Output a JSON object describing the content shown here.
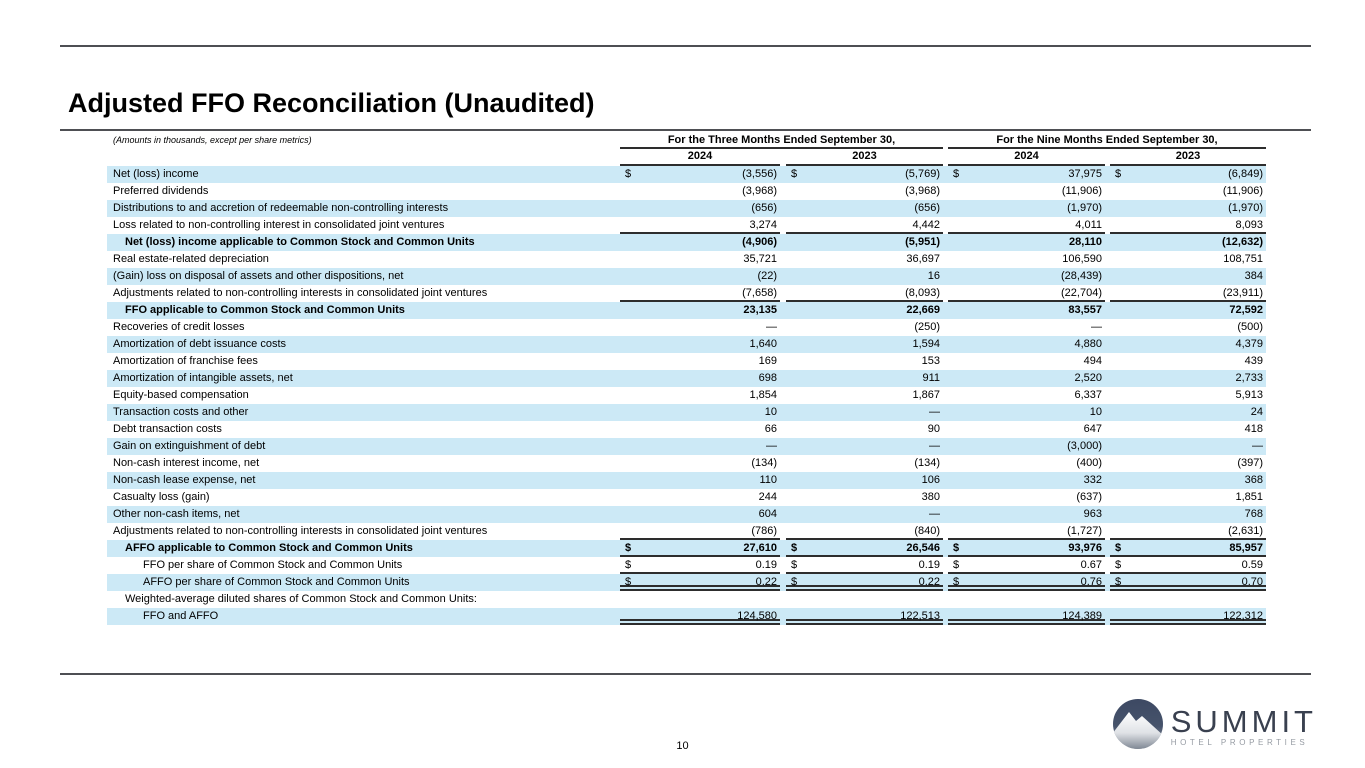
{
  "page": {
    "title": "Adjusted FFO Reconciliation (Unaudited)",
    "page_number": "10"
  },
  "table": {
    "note": "(Amounts in thousands, except per share metrics)",
    "group_headers": [
      "For the Three Months Ended September 30,",
      "For the Nine Months Ended September 30,"
    ],
    "year_headers": [
      "2024",
      "2023",
      "2024",
      "2023"
    ],
    "rows": [
      {
        "label": "Net (loss) income",
        "indent": 0,
        "bold": false,
        "dollar": true,
        "highlight": true,
        "rule": "none",
        "values": [
          "(3,556)",
          "(5,769)",
          "37,975",
          "(6,849)"
        ]
      },
      {
        "label": "Preferred dividends",
        "indent": 0,
        "bold": false,
        "dollar": false,
        "highlight": false,
        "rule": "none",
        "values": [
          "(3,968)",
          "(3,968)",
          "(11,906)",
          "(11,906)"
        ]
      },
      {
        "label": "Distributions to and accretion of redeemable non-controlling interests",
        "indent": 0,
        "bold": false,
        "dollar": false,
        "highlight": true,
        "rule": "none",
        "values": [
          "(656)",
          "(656)",
          "(1,970)",
          "(1,970)"
        ]
      },
      {
        "label": "Loss related to non-controlling interest in consolidated joint ventures",
        "indent": 0,
        "bold": false,
        "dollar": false,
        "highlight": false,
        "rule": "single",
        "values": [
          "3,274",
          "4,442",
          "4,011",
          "8,093"
        ]
      },
      {
        "label": "Net (loss) income applicable to Common Stock and Common Units",
        "indent": 12,
        "bold": true,
        "dollar": false,
        "highlight": true,
        "rule": "none",
        "values": [
          "(4,906)",
          "(5,951)",
          "28,110",
          "(12,632)"
        ]
      },
      {
        "label": "Real estate-related depreciation",
        "indent": 0,
        "bold": false,
        "dollar": false,
        "highlight": false,
        "rule": "none",
        "values": [
          "35,721",
          "36,697",
          "106,590",
          "108,751"
        ]
      },
      {
        "label": "(Gain) loss on disposal of assets and other dispositions, net",
        "indent": 0,
        "bold": false,
        "dollar": false,
        "highlight": true,
        "rule": "none",
        "values": [
          "(22)",
          "16",
          "(28,439)",
          "384"
        ]
      },
      {
        "label": "Adjustments related to non-controlling interests in consolidated joint ventures",
        "indent": 0,
        "bold": false,
        "dollar": false,
        "highlight": false,
        "rule": "single",
        "values": [
          "(7,658)",
          "(8,093)",
          "(22,704)",
          "(23,911)"
        ]
      },
      {
        "label": "FFO applicable to Common Stock and Common Units",
        "indent": 12,
        "bold": true,
        "dollar": false,
        "highlight": true,
        "rule": "none",
        "values": [
          "23,135",
          "22,669",
          "83,557",
          "72,592"
        ]
      },
      {
        "label": "Recoveries of credit losses",
        "indent": 0,
        "bold": false,
        "dollar": false,
        "highlight": false,
        "rule": "none",
        "values": [
          "—",
          "(250)",
          "—",
          "(500)"
        ]
      },
      {
        "label": "Amortization of debt issuance costs",
        "indent": 0,
        "bold": false,
        "dollar": false,
        "highlight": true,
        "rule": "none",
        "values": [
          "1,640",
          "1,594",
          "4,880",
          "4,379"
        ]
      },
      {
        "label": "Amortization of franchise fees",
        "indent": 0,
        "bold": false,
        "dollar": false,
        "highlight": false,
        "rule": "none",
        "values": [
          "169",
          "153",
          "494",
          "439"
        ]
      },
      {
        "label": "Amortization of intangible assets, net",
        "indent": 0,
        "bold": false,
        "dollar": false,
        "highlight": true,
        "rule": "none",
        "values": [
          "698",
          "911",
          "2,520",
          "2,733"
        ]
      },
      {
        "label": "Equity-based compensation",
        "indent": 0,
        "bold": false,
        "dollar": false,
        "highlight": false,
        "rule": "none",
        "values": [
          "1,854",
          "1,867",
          "6,337",
          "5,913"
        ]
      },
      {
        "label": "Transaction costs and other",
        "indent": 0,
        "bold": false,
        "dollar": false,
        "highlight": true,
        "rule": "none",
        "values": [
          "10",
          "—",
          "10",
          "24"
        ]
      },
      {
        "label": "Debt transaction costs",
        "indent": 0,
        "bold": false,
        "dollar": false,
        "highlight": false,
        "rule": "none",
        "values": [
          "66",
          "90",
          "647",
          "418"
        ]
      },
      {
        "label": "Gain on extinguishment of debt",
        "indent": 0,
        "bold": false,
        "dollar": false,
        "highlight": true,
        "rule": "none",
        "values": [
          "—",
          "—",
          "(3,000)",
          "—"
        ]
      },
      {
        "label": "Non-cash interest income, net",
        "indent": 0,
        "bold": false,
        "dollar": false,
        "highlight": false,
        "rule": "none",
        "values": [
          "(134)",
          "(134)",
          "(400)",
          "(397)"
        ]
      },
      {
        "label": "Non-cash lease expense, net",
        "indent": 0,
        "bold": false,
        "dollar": false,
        "highlight": true,
        "rule": "none",
        "values": [
          "110",
          "106",
          "332",
          "368"
        ]
      },
      {
        "label": "Casualty loss (gain)",
        "indent": 0,
        "bold": false,
        "dollar": false,
        "highlight": false,
        "rule": "none",
        "values": [
          "244",
          "380",
          "(637)",
          "1,851"
        ]
      },
      {
        "label": "Other non-cash items, net",
        "indent": 0,
        "bold": false,
        "dollar": false,
        "highlight": true,
        "rule": "none",
        "values": [
          "604",
          "—",
          "963",
          "768"
        ]
      },
      {
        "label": "Adjustments related to non-controlling interests in consolidated joint ventures",
        "indent": 0,
        "bold": false,
        "dollar": false,
        "highlight": false,
        "rule": "single",
        "values": [
          "(786)",
          "(840)",
          "(1,727)",
          "(2,631)"
        ]
      },
      {
        "label": "AFFO applicable to Common Stock and Common Units",
        "indent": 12,
        "bold": true,
        "dollar": true,
        "highlight": true,
        "rule": "single",
        "values": [
          "27,610",
          "26,546",
          "93,976",
          "85,957"
        ]
      },
      {
        "label": "FFO per share of Common Stock and Common Units",
        "indent": 30,
        "bold": false,
        "dollar": true,
        "highlight": false,
        "rule": "single",
        "values": [
          "0.19",
          "0.19",
          "0.67",
          "0.59"
        ]
      },
      {
        "label": "AFFO per share of Common Stock and Common Units",
        "indent": 30,
        "bold": false,
        "dollar": true,
        "highlight": true,
        "rule": "double",
        "values": [
          "0.22",
          "0.22",
          "0.76",
          "0.70"
        ]
      },
      {
        "label": "Weighted-average diluted shares of Common Stock and Common Units:",
        "indent": 12,
        "bold": false,
        "dollar": false,
        "highlight": false,
        "rule": "none",
        "values": [
          "",
          "",
          "",
          ""
        ]
      },
      {
        "label": "FFO and AFFO",
        "indent": 30,
        "bold": false,
        "dollar": false,
        "highlight": true,
        "rule": "double",
        "values": [
          "124,580",
          "122,513",
          "124,389",
          "122,312"
        ]
      }
    ]
  },
  "footer": {
    "logo_title": "SUMMIT",
    "logo_subtitle": "HOTEL PROPERTIES"
  },
  "colors": {
    "highlight_row": "#cce9f6",
    "table_rule": "#2d2d2d",
    "page_rule": "#4e4f53",
    "logo_navy": "#39404f",
    "logo_gray": "#969ba3"
  }
}
